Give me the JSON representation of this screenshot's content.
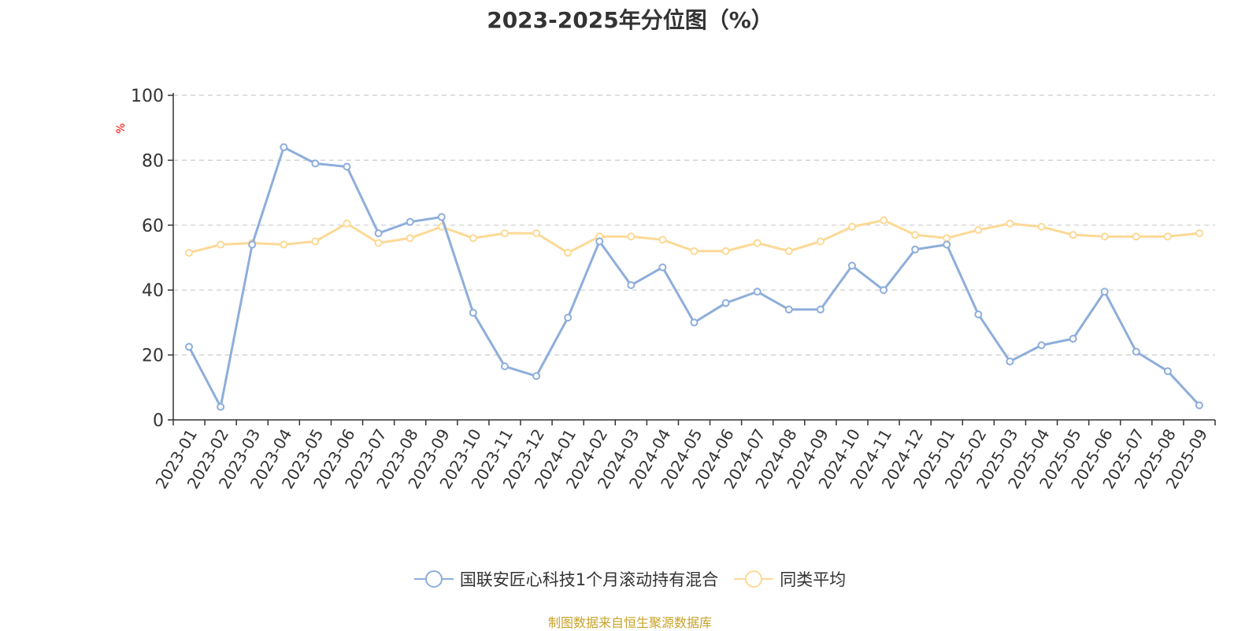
{
  "colors": {
    "series_1": "#8eaedb",
    "series_2": "#fcd996",
    "source": "#c9a227",
    "ylabel": "#ff0000"
  },
  "source_text": "制图数据来自恒生聚源数据库",
  "chart_data": {
    "type": "line",
    "title": "2023-2025年分位图（%）",
    "ylabel": "%",
    "xlabel": "",
    "ylim": [
      0,
      100
    ],
    "yticks": [
      0,
      20,
      40,
      60,
      80,
      100
    ],
    "grid": "horizontal dashed",
    "legend_position": "bottom",
    "categories": [
      "2023-01",
      "2023-02",
      "2023-03",
      "2023-04",
      "2023-05",
      "2023-06",
      "2023-07",
      "2023-08",
      "2023-09",
      "2023-10",
      "2023-11",
      "2023-12",
      "2024-01",
      "2024-02",
      "2024-03",
      "2024-04",
      "2024-05",
      "2024-06",
      "2024-07",
      "2024-08",
      "2024-09",
      "2024-10",
      "2024-11",
      "2024-12",
      "2025-01",
      "2025-02",
      "2025-03",
      "2025-04",
      "2025-05",
      "2025-06",
      "2025-07",
      "2025-08",
      "2025-09"
    ],
    "series": [
      {
        "name": "国联安匠心科技1个月滚动持有混合",
        "color": "#8eaedb",
        "values": [
          22.5,
          4,
          54,
          84,
          79,
          78,
          57.5,
          61,
          62.5,
          33,
          16.5,
          13.5,
          31.5,
          55,
          41.5,
          47,
          30,
          36,
          39.5,
          34,
          34,
          47.5,
          40,
          52.5,
          54,
          32.5,
          18,
          23,
          25,
          39.5,
          21,
          15,
          4.5
        ]
      },
      {
        "name": "同类平均",
        "color": "#fcd996",
        "values": [
          51.5,
          54,
          54.5,
          54,
          55,
          60.5,
          54.5,
          56,
          59.5,
          56,
          57.5,
          57.5,
          51.5,
          56.5,
          56.5,
          55.5,
          52,
          52,
          54.5,
          52,
          55,
          59.5,
          61.5,
          57,
          56,
          58.5,
          60.5,
          59.5,
          57,
          56.5,
          56.5,
          56.5,
          57.5
        ]
      }
    ]
  }
}
